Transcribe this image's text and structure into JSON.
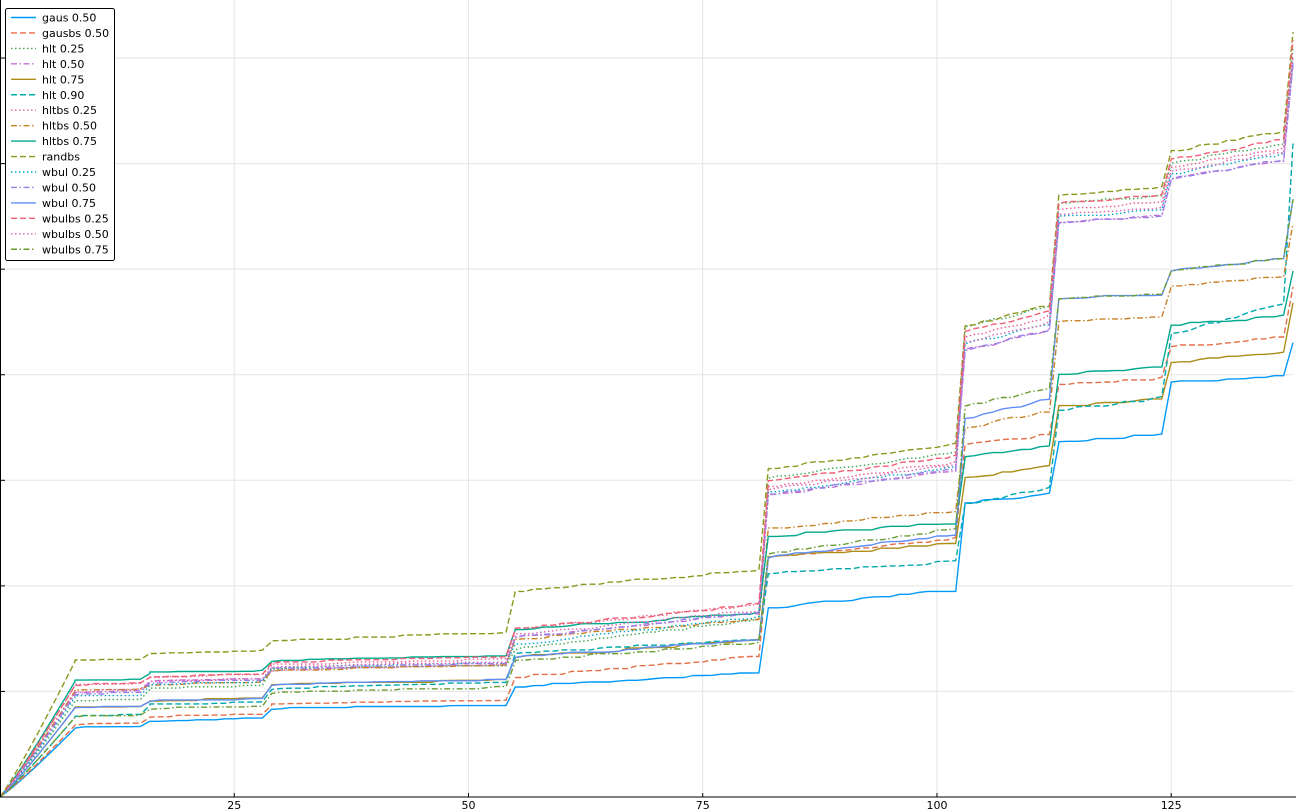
{
  "chart_data": {
    "type": "line",
    "title": "",
    "xlabel": "",
    "ylabel": "",
    "xlim": [
      0,
      138
    ],
    "ylim": [
      0,
      1
    ],
    "x_ticks": [
      25,
      50,
      75,
      100,
      125
    ],
    "x_tick_labels": [
      "25",
      "50",
      "75",
      "100",
      "125"
    ],
    "y_tick_count": 7,
    "grid": true,
    "legend_position": "top-left",
    "jumps": [
      6,
      16,
      29,
      48,
      55,
      62,
      68,
      82,
      90,
      94,
      103,
      113,
      125
    ],
    "breaks": [
      8,
      16,
      29,
      55,
      82,
      103,
      113,
      125,
      138
    ],
    "series": [
      {
        "name": "gaus 0.50",
        "color": "#009AFA",
        "dash": "solid",
        "values": [
          0.0,
          0.086,
          0.095,
          0.11,
          0.138,
          0.237,
          0.369,
          0.444,
          0.52,
          0.57
        ]
      },
      {
        "name": "gausbs 0.50",
        "color": "#E36F47",
        "dash": "dashed",
        "values": [
          0.0,
          0.09,
          0.1,
          0.115,
          0.15,
          0.3,
          0.442,
          0.517,
          0.565,
          0.64
        ]
      },
      {
        "name": "hlt 0.25",
        "color": "#3EA44E",
        "dash": "dotted",
        "values": [
          0.0,
          0.12,
          0.135,
          0.16,
          0.185,
          0.4,
          0.59,
          0.745,
          0.795,
          0.94
        ]
      },
      {
        "name": "hlt 0.50",
        "color": "#C271D2",
        "dash": "dashdot",
        "values": [
          0.0,
          0.13,
          0.145,
          0.158,
          0.2,
          0.378,
          0.56,
          0.72,
          0.775,
          0.92
        ]
      },
      {
        "name": "hlt 0.75",
        "color": "#AC8D18",
        "dash": "solid",
        "values": [
          0.0,
          0.112,
          0.12,
          0.14,
          0.175,
          0.301,
          0.4,
          0.49,
          0.545,
          0.62
        ]
      },
      {
        "name": "hlt 0.90",
        "color": "#00A9AD",
        "dash": "dashed",
        "values": [
          0.0,
          0.1,
          0.115,
          0.135,
          0.18,
          0.28,
          0.368,
          0.485,
          0.58,
          0.82
        ]
      },
      {
        "name": "hltbs 0.25",
        "color": "#ED5E93",
        "dash": "dotted",
        "values": [
          0.0,
          0.14,
          0.15,
          0.165,
          0.21,
          0.388,
          0.577,
          0.737,
          0.79,
          0.93
        ]
      },
      {
        "name": "hltbs 0.50",
        "color": "#C68125",
        "dash": "dashdot",
        "values": [
          0.0,
          0.133,
          0.14,
          0.158,
          0.198,
          0.337,
          0.463,
          0.595,
          0.64,
          0.72
        ]
      },
      {
        "name": "hltbs 0.75",
        "color": "#00A98D",
        "dash": "solid",
        "values": [
          0.0,
          0.145,
          0.155,
          0.17,
          0.21,
          0.327,
          0.425,
          0.53,
          0.592,
          0.66
        ]
      },
      {
        "name": "randbs",
        "color": "#8E971D",
        "dash": "dashed",
        "values": [
          0.0,
          0.17,
          0.18,
          0.195,
          0.258,
          0.412,
          0.59,
          0.755,
          0.81,
          0.96
        ]
      },
      {
        "name": "wbul 0.25",
        "color": "#00A8CB",
        "dash": "dotted",
        "values": [
          0.0,
          0.125,
          0.14,
          0.162,
          0.192,
          0.382,
          0.568,
          0.727,
          0.782,
          0.925
        ]
      },
      {
        "name": "wbul 0.50",
        "color": "#9B7FE8",
        "dash": "dashdot",
        "values": [
          0.0,
          0.128,
          0.143,
          0.16,
          0.2,
          0.38,
          0.56,
          0.72,
          0.775,
          0.92
        ]
      },
      {
        "name": "wbul 0.75",
        "color": "#618DF6",
        "dash": "solid",
        "values": [
          0.0,
          0.112,
          0.12,
          0.14,
          0.175,
          0.3,
          0.475,
          0.625,
          0.66,
          0.75
        ]
      },
      {
        "name": "wbulbs 0.25",
        "color": "#F05F73",
        "dash": "dashed",
        "values": [
          0.0,
          0.14,
          0.15,
          0.168,
          0.21,
          0.395,
          0.584,
          0.745,
          0.8,
          0.95
        ]
      },
      {
        "name": "wbulbs 0.50",
        "color": "#DD64B5",
        "dash": "dotted",
        "values": [
          0.0,
          0.132,
          0.145,
          0.162,
          0.203,
          0.385,
          0.57,
          0.73,
          0.785,
          0.93
        ]
      },
      {
        "name": "wbulbs 0.75",
        "color": "#6B9E32",
        "dash": "dashdot",
        "values": [
          0.0,
          0.1,
          0.11,
          0.13,
          0.17,
          0.305,
          0.49,
          0.625,
          0.66,
          0.75
        ]
      }
    ]
  }
}
